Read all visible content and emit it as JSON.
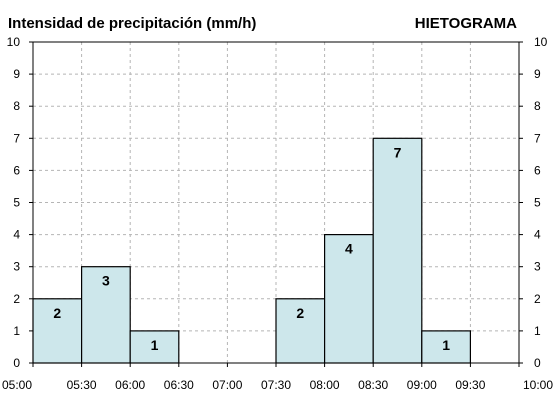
{
  "chart_data": {
    "type": "bar",
    "title": "Intensidad de precipitación (mm/h)",
    "subtitle": "HIETOGRAMA",
    "bar_color": "#cde7eb",
    "bar_stroke": "#000000",
    "grid": true,
    "ylim": [
      0,
      10
    ],
    "y_ticks": [
      "0",
      "1",
      "2",
      "3",
      "4",
      "5",
      "6",
      "7",
      "8",
      "9",
      "10"
    ],
    "x_ticks": [
      "05:00",
      "05:30",
      "06:00",
      "06:30",
      "07:00",
      "07:30",
      "08:00",
      "08:30",
      "09:00",
      "09:30",
      "10:00"
    ],
    "categories": [
      "05:00",
      "05:30",
      "06:00",
      "06:30",
      "07:00",
      "07:30",
      "08:00",
      "08:30",
      "09:00",
      "09:30"
    ],
    "values": [
      2,
      3,
      1,
      0,
      0,
      2,
      4,
      7,
      1,
      0
    ],
    "data_labels": [
      "2",
      "3",
      "1",
      "",
      "",
      "2",
      "4",
      "7",
      "1",
      ""
    ]
  }
}
